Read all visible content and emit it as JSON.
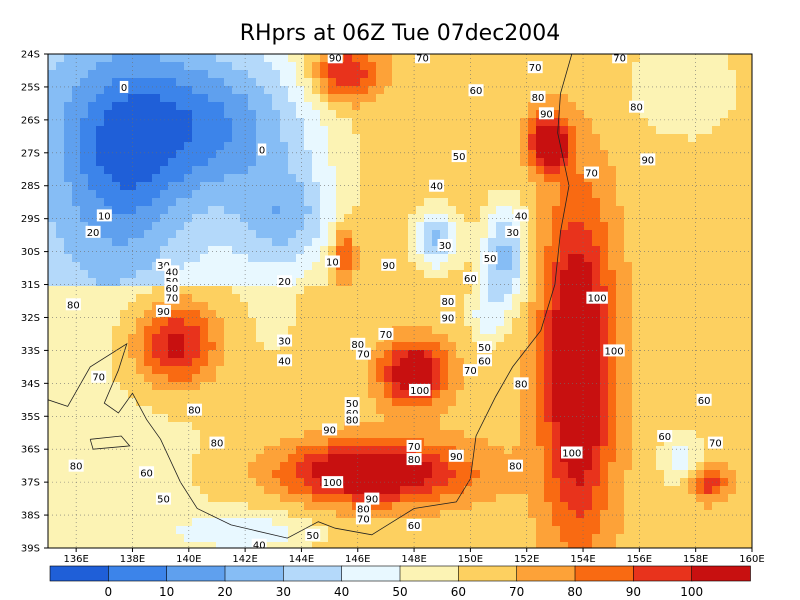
{
  "title": "RHprs at 06Z Tue 07dec2004",
  "x_axis": {
    "range": [
      135,
      160
    ],
    "ticks": [
      136,
      138,
      140,
      142,
      144,
      146,
      148,
      150,
      152,
      154,
      156,
      158,
      160
    ],
    "tick_labels": [
      "136E",
      "138E",
      "140E",
      "142E",
      "144E",
      "146E",
      "148E",
      "150E",
      "152E",
      "154E",
      "156E",
      "158E",
      "160E"
    ]
  },
  "y_axis": {
    "range": [
      -39,
      -24
    ],
    "ticks": [
      -24,
      -25,
      -26,
      -27,
      -28,
      -29,
      -30,
      -31,
      -32,
      -33,
      -34,
      -35,
      -36,
      -37,
      -38,
      -39
    ],
    "tick_labels": [
      "24S",
      "25S",
      "26S",
      "27S",
      "28S",
      "29S",
      "30S",
      "31S",
      "32S",
      "33S",
      "34S",
      "35S",
      "36S",
      "37S",
      "38S",
      "39S"
    ]
  },
  "colorbar": {
    "labels": [
      "0",
      "10",
      "20",
      "30",
      "40",
      "50",
      "60",
      "70",
      "80",
      "90",
      "100"
    ],
    "colors": [
      "#1f5fd8",
      "#3c84ea",
      "#5fa0ee",
      "#86bdf5",
      "#b4d9fa",
      "#e8f8ff",
      "#fcf3b4",
      "#fdd060",
      "#fda238",
      "#f96a12",
      "#e8331c",
      "#c81010"
    ]
  },
  "chart_data": {
    "type": "heatmap",
    "title": "RHprs at 06Z Tue 07dec2004",
    "xlim": [
      135,
      160
    ],
    "ylim": [
      -39,
      -24
    ],
    "grid": true,
    "contour_interval": 10,
    "levels": [
      0,
      10,
      20,
      30,
      40,
      50,
      60,
      70,
      80,
      90,
      100
    ],
    "fields": [
      {
        "lon": 140.5,
        "lat": -26.2,
        "rh": -40,
        "sx": 4.0,
        "sy": 2.2
      },
      {
        "lon": 137.5,
        "lat": -27.5,
        "rh": -25,
        "sx": 2.0,
        "sy": 3.0
      },
      {
        "lon": 143.5,
        "lat": -29.0,
        "rh": -30,
        "sx": 1.8,
        "sy": 1.5
      },
      {
        "lon": 139.5,
        "lat": -32.8,
        "rh": 45,
        "sx": 1.5,
        "sy": 1.3
      },
      {
        "lon": 143.0,
        "lat": -32.0,
        "rh": -5,
        "sx": 0.9,
        "sy": 1.2
      },
      {
        "lon": 148.0,
        "lat": -33.7,
        "rh": 55,
        "sx": 1.1,
        "sy": 0.9
      },
      {
        "lon": 146.5,
        "lat": -36.7,
        "rh": 55,
        "sx": 3.2,
        "sy": 0.9
      },
      {
        "lon": 153.8,
        "lat": -33.5,
        "rh": 58,
        "sx": 1.2,
        "sy": 4.8
      },
      {
        "lon": 152.8,
        "lat": -26.7,
        "rh": 55,
        "sx": 0.7,
        "sy": 0.8
      },
      {
        "lon": 145.5,
        "lat": -24.6,
        "rh": 40,
        "sx": 1.2,
        "sy": 0.9
      },
      {
        "lon": 148.8,
        "lat": -29.6,
        "rh": -38,
        "sx": 0.8,
        "sy": 0.9
      },
      {
        "lon": 151.2,
        "lat": -30.2,
        "rh": -40,
        "sx": 0.8,
        "sy": 1.6
      },
      {
        "lon": 150.5,
        "lat": -32.0,
        "rh": -18,
        "sx": 0.6,
        "sy": 0.9
      },
      {
        "lon": 157.5,
        "lat": -25.0,
        "rh": -15,
        "sx": 2.0,
        "sy": 1.5
      },
      {
        "lon": 158.5,
        "lat": -29.5,
        "rh": -5,
        "sx": 1.5,
        "sy": 2.5
      },
      {
        "lon": 158.5,
        "lat": -37.0,
        "rh": 35,
        "sx": 0.6,
        "sy": 0.5
      },
      {
        "lon": 157.5,
        "lat": -36.3,
        "rh": -20,
        "sx": 0.8,
        "sy": 0.8
      },
      {
        "lon": 142.0,
        "lat": -38.5,
        "rh": -20,
        "sx": 2.5,
        "sy": 0.6
      },
      {
        "lon": 145.5,
        "lat": -30.0,
        "rh": 30,
        "sx": 0.4,
        "sy": 0.9
      }
    ],
    "contour_labels": [
      {
        "text": "90",
        "lon": 145.2,
        "lat": -24.1
      },
      {
        "text": "70",
        "lon": 148.3,
        "lat": -24.1
      },
      {
        "text": "70",
        "lon": 155.3,
        "lat": -24.1
      },
      {
        "text": "0",
        "lon": 137.7,
        "lat": -25.0
      },
      {
        "text": "70",
        "lon": 152.3,
        "lat": -24.4
      },
      {
        "text": "80",
        "lon": 152.4,
        "lat": -25.3
      },
      {
        "text": "60",
        "lon": 150.2,
        "lat": -25.1
      },
      {
        "text": "90",
        "lon": 152.7,
        "lat": -25.8
      },
      {
        "text": "80",
        "lon": 155.9,
        "lat": -25.6
      },
      {
        "text": "0",
        "lon": 142.6,
        "lat": -26.9
      },
      {
        "text": "90",
        "lon": 156.3,
        "lat": -27.2
      },
      {
        "text": "70",
        "lon": 154.3,
        "lat": -27.6
      },
      {
        "text": "50",
        "lon": 149.6,
        "lat": -27.1
      },
      {
        "text": "40",
        "lon": 148.8,
        "lat": -28.0
      },
      {
        "text": "10",
        "lon": 137.0,
        "lat": -28.9
      },
      {
        "text": "40",
        "lon": 151.8,
        "lat": -28.9
      },
      {
        "text": "20",
        "lon": 136.6,
        "lat": -29.4
      },
      {
        "text": "30",
        "lon": 151.5,
        "lat": -29.4
      },
      {
        "text": "30",
        "lon": 149.1,
        "lat": -29.8
      },
      {
        "text": "10",
        "lon": 145.1,
        "lat": -30.3
      },
      {
        "text": "90",
        "lon": 147.1,
        "lat": -30.4
      },
      {
        "text": "50",
        "lon": 150.7,
        "lat": -30.2
      },
      {
        "text": "30",
        "lon": 139.1,
        "lat": -30.4
      },
      {
        "text": "40",
        "lon": 139.4,
        "lat": -30.6
      },
      {
        "text": "50",
        "lon": 139.4,
        "lat": -30.9
      },
      {
        "text": "60",
        "lon": 139.4,
        "lat": -31.1
      },
      {
        "text": "70",
        "lon": 139.4,
        "lat": -31.4
      },
      {
        "text": "20",
        "lon": 143.4,
        "lat": -30.9
      },
      {
        "text": "60",
        "lon": 150.0,
        "lat": -30.8
      },
      {
        "text": "100",
        "lon": 154.5,
        "lat": -31.4
      },
      {
        "text": "80",
        "lon": 135.9,
        "lat": -31.6
      },
      {
        "text": "90",
        "lon": 139.1,
        "lat": -31.8
      },
      {
        "text": "80",
        "lon": 149.2,
        "lat": -31.5
      },
      {
        "text": "90",
        "lon": 149.2,
        "lat": -32.0
      },
      {
        "text": "70",
        "lon": 147.0,
        "lat": -32.5
      },
      {
        "text": "30",
        "lon": 143.4,
        "lat": -32.7
      },
      {
        "text": "80",
        "lon": 146.0,
        "lat": -32.8
      },
      {
        "text": "70",
        "lon": 146.2,
        "lat": -33.1
      },
      {
        "text": "50",
        "lon": 150.5,
        "lat": -32.9
      },
      {
        "text": "60",
        "lon": 150.5,
        "lat": -33.3
      },
      {
        "text": "100",
        "lon": 155.1,
        "lat": -33.0
      },
      {
        "text": "40",
        "lon": 143.4,
        "lat": -33.3
      },
      {
        "text": "70",
        "lon": 150.0,
        "lat": -33.6
      },
      {
        "text": "70",
        "lon": 136.8,
        "lat": -33.8
      },
      {
        "text": "100",
        "lon": 148.2,
        "lat": -34.2
      },
      {
        "text": "80",
        "lon": 151.8,
        "lat": -34.0
      },
      {
        "text": "50",
        "lon": 145.8,
        "lat": -34.6
      },
      {
        "text": "60",
        "lon": 145.8,
        "lat": -34.9
      },
      {
        "text": "80",
        "lon": 140.2,
        "lat": -34.8
      },
      {
        "text": "80",
        "lon": 145.8,
        "lat": -35.1
      },
      {
        "text": "60",
        "lon": 158.3,
        "lat": -34.5
      },
      {
        "text": "90",
        "lon": 145.0,
        "lat": -35.4
      },
      {
        "text": "60",
        "lon": 156.9,
        "lat": -35.6
      },
      {
        "text": "70",
        "lon": 158.7,
        "lat": -35.8
      },
      {
        "text": "80",
        "lon": 141.0,
        "lat": -35.8
      },
      {
        "text": "70",
        "lon": 148.0,
        "lat": -35.9
      },
      {
        "text": "100",
        "lon": 153.6,
        "lat": -36.1
      },
      {
        "text": "80",
        "lon": 148.0,
        "lat": -36.3
      },
      {
        "text": "90",
        "lon": 149.5,
        "lat": -36.2
      },
      {
        "text": "80",
        "lon": 151.6,
        "lat": -36.5
      },
      {
        "text": "80",
        "lon": 136.0,
        "lat": -36.5
      },
      {
        "text": "60",
        "lon": 138.5,
        "lat": -36.7
      },
      {
        "text": "100",
        "lon": 145.1,
        "lat": -37.0
      },
      {
        "text": "50",
        "lon": 139.1,
        "lat": -37.5
      },
      {
        "text": "90",
        "lon": 146.5,
        "lat": -37.5
      },
      {
        "text": "80",
        "lon": 146.2,
        "lat": -37.8
      },
      {
        "text": "70",
        "lon": 146.2,
        "lat": -38.1
      },
      {
        "text": "60",
        "lon": 148.0,
        "lat": -38.3
      },
      {
        "text": "50",
        "lon": 144.4,
        "lat": -38.6
      },
      {
        "text": "40",
        "lon": 142.5,
        "lat": -38.9
      }
    ]
  }
}
